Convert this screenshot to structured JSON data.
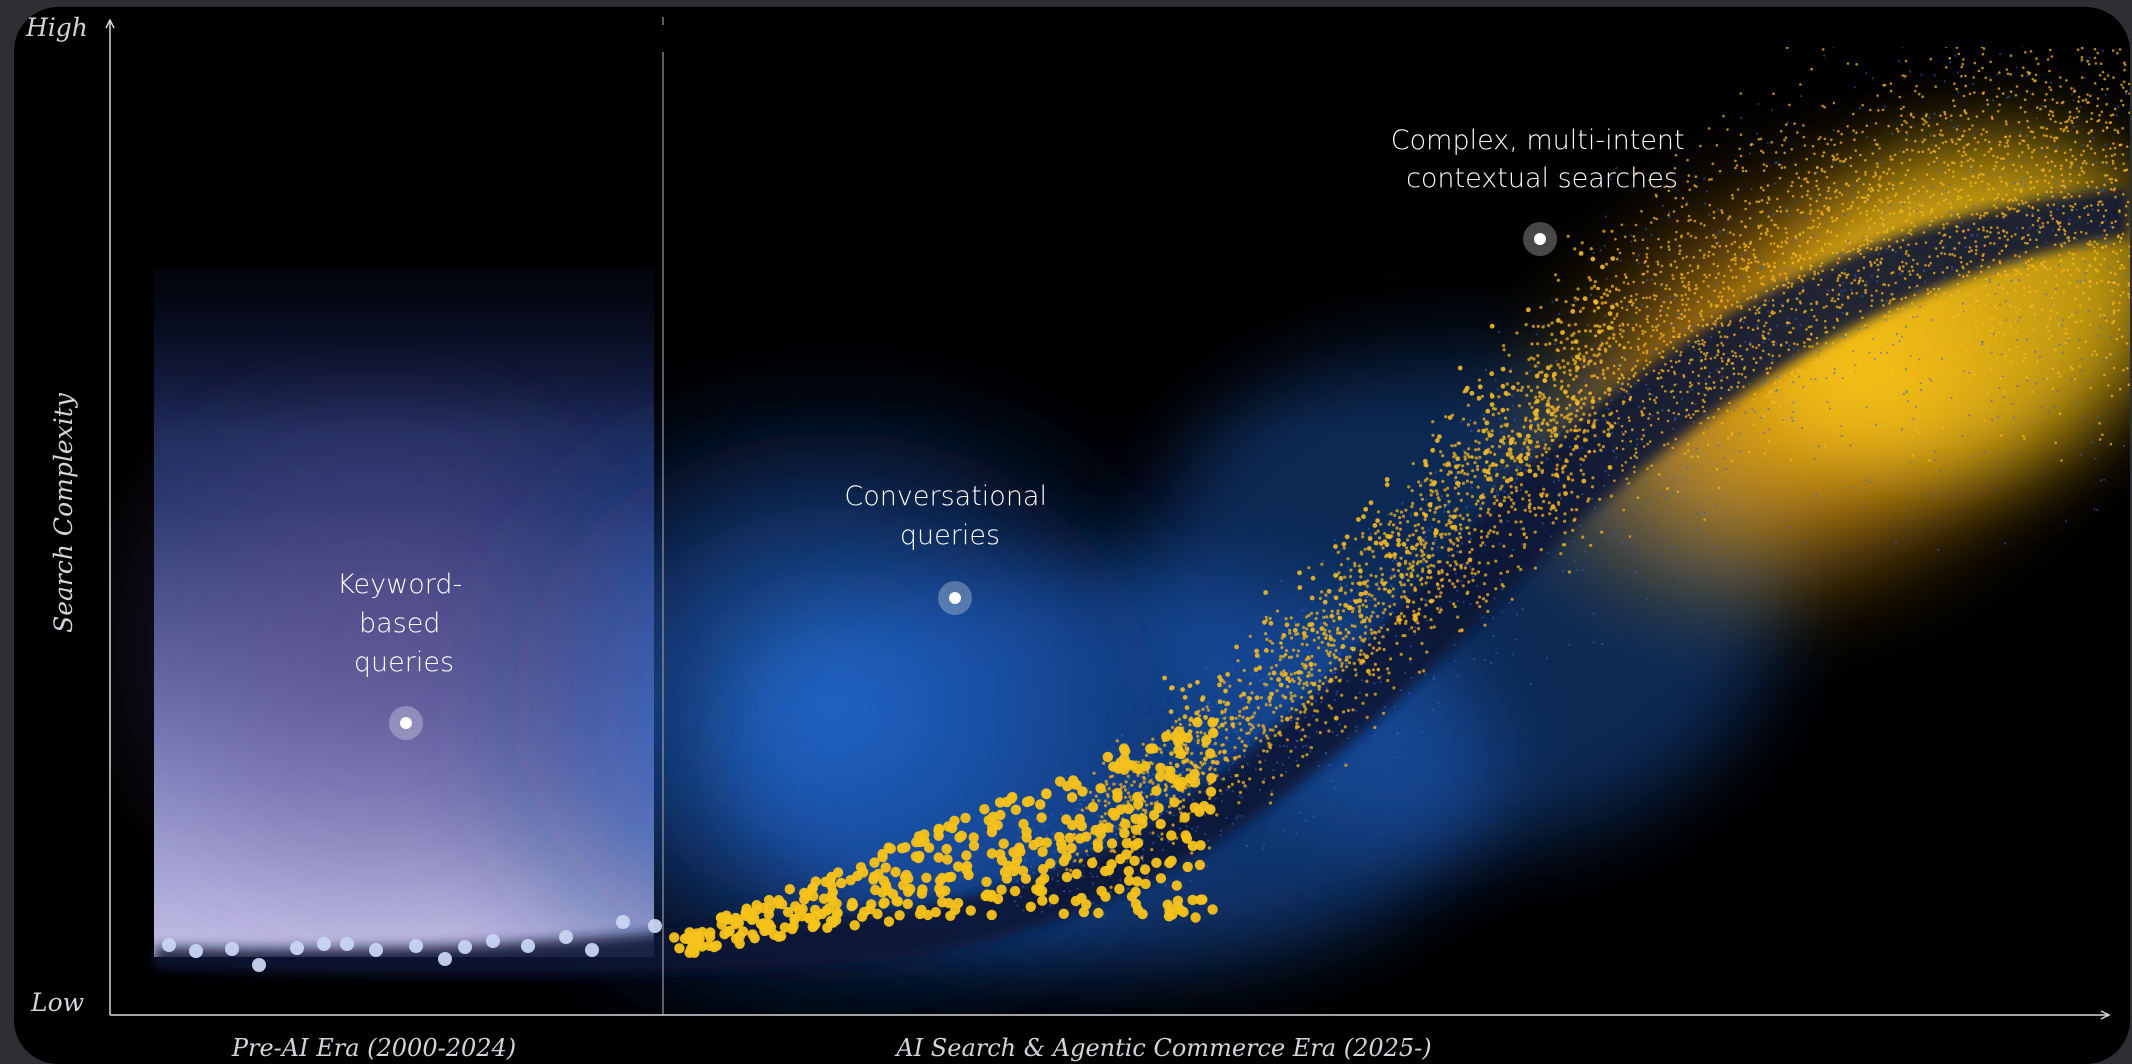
{
  "chart_data": {
    "type": "scatter",
    "title": "",
    "xlabel": "",
    "ylabel": "Search Complexity",
    "y_tick_labels": {
      "high": "High",
      "low": "Low"
    },
    "x_regions": [
      {
        "label": "Pre-AI Era (2000-2024)"
      },
      {
        "label": "AI Search & Agentic Commerce Era (2025-)"
      }
    ],
    "annotations": [
      {
        "lines": [
          "Keyword-",
          "based",
          "queries"
        ]
      },
      {
        "lines": [
          "Conversational",
          "queries"
        ]
      },
      {
        "lines": [
          "Complex, multi-intent",
          "contextual searches"
        ]
      }
    ],
    "grid": false,
    "legend": "none",
    "colors": {
      "pre_ai_dots": "#c9d4f2",
      "conversational_dots": "#f7c21a",
      "complex_cloud": "#f5b41c",
      "glow_blue": "#1f63c6",
      "glow_lavender": "#b7b3dc",
      "axis": "#d8d8dc"
    }
  }
}
